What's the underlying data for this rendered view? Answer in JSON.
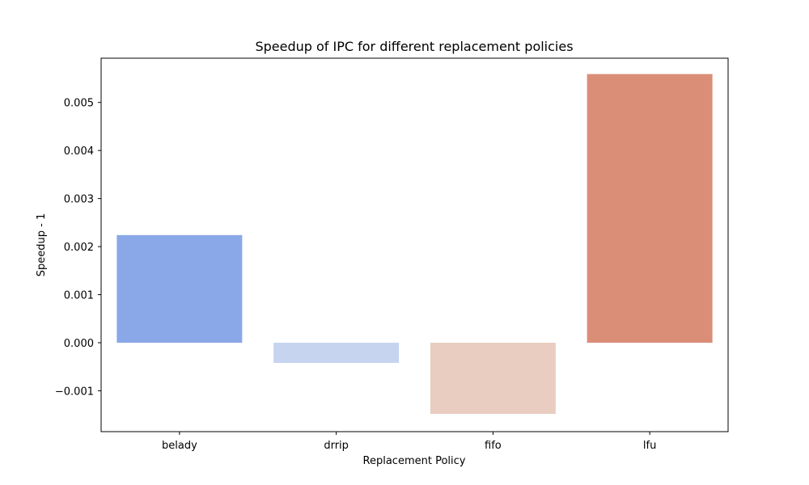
{
  "chart_data": {
    "type": "bar",
    "title": "Speedup of IPC for different replacement policies",
    "xlabel": "Replacement Policy",
    "ylabel": "Speedup - 1",
    "categories": [
      "belady",
      "drrip",
      "fifo",
      "lfu"
    ],
    "values": [
      0.00224,
      -0.00042,
      -0.00148,
      0.00559
    ],
    "colors": [
      "#8aa8e8",
      "#c6d4f0",
      "#e8cdc0",
      "#db8e77"
    ],
    "ylim": [
      -0.00185,
      0.00592
    ],
    "yticks": [
      -0.001,
      0.0,
      0.001,
      0.002,
      0.003,
      0.004,
      0.005
    ],
    "ytick_labels": [
      "−0.001",
      "0.000",
      "0.001",
      "0.002",
      "0.003",
      "0.004",
      "0.005"
    ],
    "grid": false,
    "legend": "none"
  }
}
